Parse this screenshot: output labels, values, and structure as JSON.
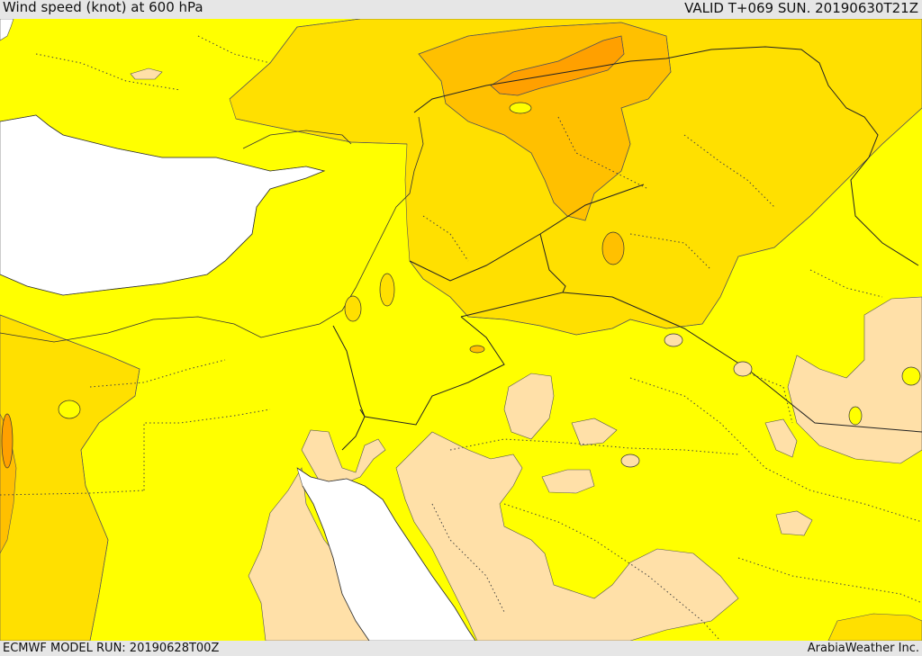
{
  "header": {
    "title": "Wind speed (knot) at 600 hPa",
    "valid": "VALID T+069 SUN. 20190630T21Z"
  },
  "footer": {
    "model_run": "ECMWF MODEL RUN: 20190628T00Z",
    "credit": "ArabiaWeather Inc."
  },
  "map": {
    "colors": {
      "water": "#ffffff",
      "band_light": "#ffe0a8",
      "band_yellow": "#ffff00",
      "band_gold": "#ffe000",
      "band_orange": "#ffc000",
      "band_dark_orange": "#ffa000"
    }
  }
}
